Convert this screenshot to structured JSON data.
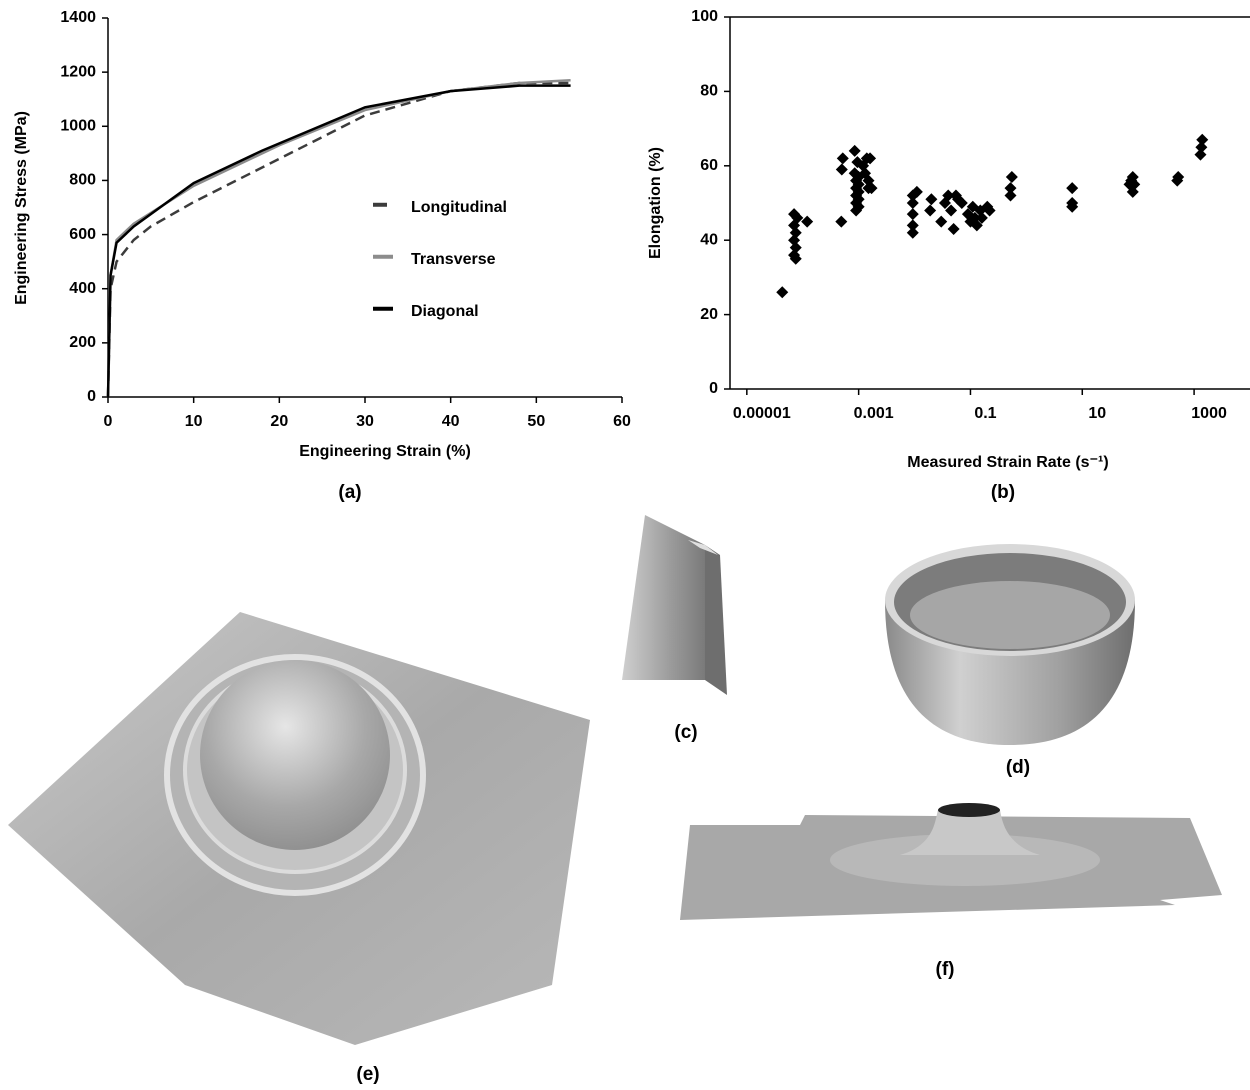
{
  "chart_data": [
    {
      "type": "line",
      "panel": "(a)",
      "xlabel": "Engineering Strain (%)",
      "ylabel": "Engineering Stress (MPa)",
      "xlim": [
        0,
        60
      ],
      "ylim": [
        0,
        1400
      ],
      "xticks": [
        0,
        10,
        20,
        30,
        40,
        50,
        60
      ],
      "yticks": [
        0,
        200,
        400,
        600,
        800,
        1000,
        1200,
        1400
      ],
      "legend": "center right",
      "series": [
        {
          "name": "Longitudinal",
          "color": "#3c3c3c",
          "line_style": "dashed",
          "x": [
            0,
            0.3,
            1,
            3,
            5,
            10,
            20,
            30,
            40,
            48,
            54
          ],
          "values": [
            0,
            400,
            500,
            580,
            630,
            720,
            880,
            1040,
            1130,
            1160,
            1160
          ]
        },
        {
          "name": "Transverse",
          "color": "#8c8c8c",
          "line_style": "solid",
          "x": [
            0,
            0.3,
            1,
            3,
            10,
            20,
            30,
            40,
            48,
            54
          ],
          "values": [
            0,
            450,
            580,
            640,
            780,
            930,
            1060,
            1130,
            1160,
            1170
          ]
        },
        {
          "name": "Diagonal",
          "color": "#000000",
          "line_style": "solid",
          "x": [
            0,
            0.3,
            1,
            3,
            10,
            18,
            30,
            40,
            48,
            54
          ],
          "values": [
            0,
            450,
            570,
            630,
            790,
            910,
            1070,
            1130,
            1150,
            1150
          ]
        }
      ]
    },
    {
      "type": "scatter",
      "panel": "(b)",
      "xlabel": "Measured Strain Rate (s⁻¹)",
      "ylabel": "Elongation (%)",
      "xscale": "log",
      "xlim": [
        5e-06,
        10000
      ],
      "ylim": [
        0,
        100
      ],
      "xticks": [
        1e-05,
        0.001,
        0.1,
        10,
        1000
      ],
      "yticks": [
        0,
        20,
        40,
        60,
        80,
        100
      ],
      "marker": "diamond",
      "color": "#000000",
      "x": [
        4.3e-05,
        7e-05,
        7e-05,
        7.5e-05,
        7e-05,
        7.5e-05,
        7e-05,
        7.5e-05,
        8e-05,
        0.00012,
        0.00049,
        0.0005,
        0.00052,
        0.00085,
        0.00085,
        0.0009,
        0.0009,
        0.0009,
        0.0009,
        0.0009,
        0.00095,
        0.001,
        0.001,
        0.001,
        0.001,
        0.001,
        0.0012,
        0.0013,
        0.0014,
        0.0015,
        0.0015,
        0.0016,
        0.0017,
        0.0093,
        0.0093,
        0.0093,
        0.0093,
        0.0093,
        0.011,
        0.019,
        0.02,
        0.03,
        0.035,
        0.04,
        0.045,
        0.05,
        0.055,
        0.06,
        0.07,
        0.09,
        0.1,
        0.11,
        0.12,
        0.13,
        0.15,
        0.16,
        0.2,
        0.22,
        0.52,
        0.52,
        0.55,
        6.6,
        6.6,
        6.6,
        70,
        75,
        80,
        80,
        85,
        500,
        520,
        1300,
        1350,
        1400
      ],
      "values": [
        26,
        47,
        44,
        42,
        40,
        38,
        36,
        35,
        46,
        45,
        45,
        59,
        62,
        64,
        58,
        56,
        54,
        52,
        50,
        48,
        61,
        57,
        55,
        53,
        51,
        49,
        60,
        58,
        62,
        56,
        54,
        62,
        54,
        52,
        50,
        47,
        44,
        42,
        53,
        48,
        51,
        45,
        50,
        52,
        48,
        43,
        52,
        51,
        50,
        47,
        45,
        49,
        46,
        44,
        48,
        46,
        49,
        48,
        52,
        54,
        57,
        49,
        50,
        54,
        55,
        56,
        57,
        53,
        55,
        56,
        57,
        63,
        65,
        67
      ]
    }
  ],
  "photos": [
    {
      "label": "(c)"
    },
    {
      "label": "(d)"
    },
    {
      "label": "(e)"
    },
    {
      "label": "(f)"
    }
  ]
}
